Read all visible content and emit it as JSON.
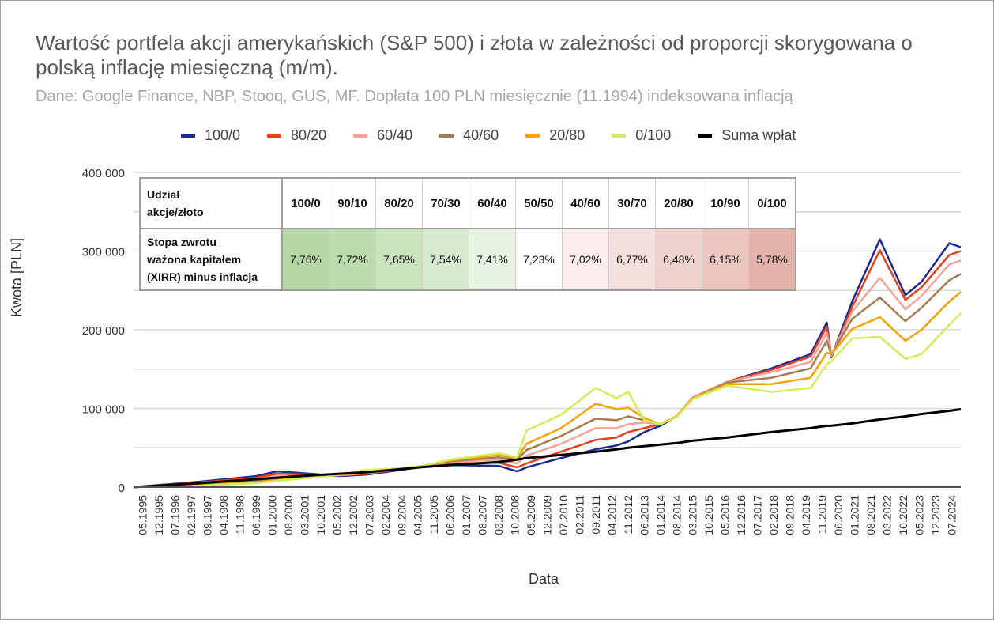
{
  "chart_data": {
    "type": "line",
    "title": "Wartość portfela akcji amerykańskich (S&P 500) i złota w zależności od proporcji skorygowana o polską inflację miesięczną (m/m).",
    "subtitle": "Dane: Google Finance, NBP, Stooq, GUS, MF. Dopłata 100 PLN miesięcznie (11.1994) indeksowana inflacją",
    "xlabel": "Data",
    "ylabel": "Kwota [PLN]",
    "ylim": [
      0,
      400000
    ],
    "y_ticks": [
      "0",
      "100 000",
      "200 000",
      "300 000",
      "400 000"
    ],
    "grid": true,
    "legend": "top",
    "x_ticks": [
      "05.1995",
      "12.1995",
      "07.1996",
      "02.1997",
      "09.1997",
      "04.1998",
      "11.1998",
      "06.1999",
      "01.2000",
      "08.2000",
      "03.2001",
      "10.2001",
      "05.2002",
      "12.2002",
      "07.2003",
      "02.2004",
      "09.2004",
      "04.2005",
      "11.2005",
      "06.2006",
      "01.2007",
      "08.2007",
      "03.2008",
      "10.2008",
      "05.2009",
      "12.2009",
      "07.2010",
      "02.2011",
      "09.2011",
      "04.2012",
      "11.2012",
      "06.2013",
      "01.2014",
      "08.2014",
      "03.2015",
      "10.2015",
      "05.2016",
      "12.2016",
      "07.2017",
      "02.2018",
      "09.2018",
      "04.2019",
      "11.2019",
      "06.2020",
      "01.2021",
      "08.2021",
      "03.2022",
      "10.2022",
      "05.2023",
      "12.2023",
      "07.2024"
    ],
    "x": [
      "01.1995",
      "06.1997",
      "06.1999",
      "03.2000",
      "06.2001",
      "06.2002",
      "06.2003",
      "09.2004",
      "06.2005",
      "06.2006",
      "03.2008",
      "11.2008",
      "03.2009",
      "06.2010",
      "09.2011",
      "06.2012",
      "11.2012",
      "06.2013",
      "01.2014",
      "08.2014",
      "03.2015",
      "06.2016",
      "01.2018",
      "06.2019",
      "01.2020",
      "03.2020",
      "12.2020",
      "12.2021",
      "11.2022",
      "06.2023",
      "06.2024",
      "11.2024"
    ],
    "series": [
      {
        "name": "100/0",
        "color": "#1f2a8c",
        "values": [
          0,
          7000,
          14000,
          20000,
          17000,
          14000,
          16000,
          22000,
          26000,
          28000,
          27000,
          20000,
          25000,
          37000,
          48000,
          53000,
          58000,
          70000,
          78000,
          90000,
          114000,
          134000,
          151000,
          169000,
          209000,
          165000,
          236000,
          315000,
          244000,
          261000,
          310000,
          305000
        ]
      },
      {
        "name": "80/20",
        "color": "#e8401c",
        "values": [
          0,
          6000,
          12000,
          17000,
          16000,
          15000,
          17000,
          23000,
          26000,
          30000,
          31000,
          25000,
          30000,
          45000,
          60000,
          63000,
          70000,
          75000,
          80000,
          90000,
          114000,
          134000,
          149000,
          166000,
          204000,
          166000,
          229000,
          301000,
          238000,
          254000,
          295000,
          300000
        ]
      },
      {
        "name": "60/40",
        "color": "#f4a398",
        "values": [
          0,
          5000,
          10000,
          14000,
          14000,
          15000,
          18000,
          23000,
          26000,
          32000,
          35000,
          30000,
          40000,
          55000,
          75000,
          75000,
          80000,
          82000,
          80000,
          90000,
          114000,
          134000,
          146000,
          159000,
          196000,
          167000,
          223000,
          266000,
          226000,
          243000,
          283000,
          288000
        ]
      },
      {
        "name": "40/60",
        "color": "#a67c52",
        "values": [
          0,
          4000,
          8000,
          11000,
          13000,
          16000,
          19000,
          23000,
          27000,
          33000,
          38000,
          35000,
          47000,
          65000,
          87000,
          85000,
          90000,
          85000,
          80000,
          90000,
          113000,
          133000,
          139000,
          151000,
          186000,
          168000,
          214000,
          241000,
          211000,
          228000,
          263000,
          271000
        ]
      },
      {
        "name": "20/80",
        "color": "#f4a300",
        "values": [
          0,
          3000,
          6000,
          9000,
          12000,
          16000,
          20000,
          24000,
          27000,
          34000,
          41000,
          37000,
          55000,
          75000,
          106000,
          99000,
          101000,
          88000,
          80000,
          90000,
          113000,
          131000,
          131000,
          139000,
          171000,
          169000,
          201000,
          216000,
          186000,
          200000,
          236000,
          248000
        ]
      },
      {
        "name": "0/100",
        "color": "#d4ec5a",
        "values": [
          0,
          2000,
          5000,
          8000,
          12000,
          16000,
          22000,
          24000,
          27000,
          35000,
          43000,
          38000,
          72000,
          92000,
          126000,
          113000,
          121000,
          85000,
          80000,
          89000,
          112000,
          129000,
          121000,
          126000,
          156000,
          160000,
          189000,
          191000,
          163000,
          169000,
          206000,
          221000
        ]
      },
      {
        "name": "Suma wpłat",
        "color": "#000000",
        "values": [
          0,
          5000,
          10000,
          12000,
          15000,
          17000,
          19000,
          23000,
          25500,
          28000,
          32000,
          35000,
          37000,
          41000,
          45000,
          48000,
          50000,
          52000,
          54000,
          56000,
          59000,
          63000,
          70000,
          75000,
          78000,
          78000,
          81000,
          86000,
          90000,
          93000,
          97000,
          99000
        ]
      }
    ],
    "table": {
      "header_label": [
        "Udział",
        "akcje/złoto"
      ],
      "row_label": [
        "Stopa zwrotu",
        "ważona kapitałem",
        "(XIRR) minus inflacja"
      ],
      "columns": [
        "100/0",
        "90/10",
        "80/20",
        "70/30",
        "60/40",
        "50/50",
        "40/60",
        "30/70",
        "20/80",
        "10/90",
        "0/100"
      ],
      "values": [
        "7,76%",
        "7,72%",
        "7,65%",
        "7,54%",
        "7,41%",
        "7,23%",
        "7,02%",
        "6,77%",
        "6,48%",
        "6,15%",
        "5,78%"
      ],
      "cell_colors": [
        "#b5d8a6",
        "#bcdcad",
        "#c9e3bd",
        "#d7eacf",
        "#e9f3e4",
        "#ffffff",
        "#fbeeed",
        "#f5e0dd",
        "#f0d3cf",
        "#ebc5bf",
        "#e3b2aa"
      ]
    }
  }
}
